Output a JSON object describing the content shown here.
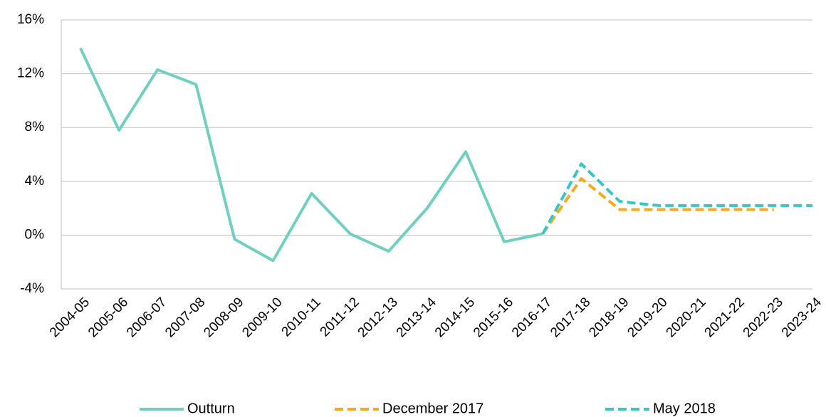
{
  "chart_data": {
    "type": "line",
    "categories": [
      "2004-05",
      "2005-06",
      "2006-07",
      "2007-08",
      "2008-09",
      "2009-10",
      "2010-11",
      "2011-12",
      "2012-13",
      "2013-14",
      "2014-15",
      "2015-16",
      "2016-17",
      "2017-18",
      "2018-19",
      "2019-20",
      "2020-21",
      "2021-22",
      "2022-23",
      "2023-24"
    ],
    "series": [
      {
        "name": "Outturn",
        "color": "#70d0c0",
        "dashed": false,
        "values": [
          13.9,
          7.8,
          12.3,
          11.2,
          -0.3,
          -1.9,
          3.1,
          0.1,
          -1.2,
          2.0,
          6.2,
          -0.5,
          0.1,
          null,
          null,
          null,
          null,
          null,
          null,
          null
        ]
      },
      {
        "name": "December 2017",
        "color": "#f7a81b",
        "dashed": true,
        "values": [
          null,
          null,
          null,
          null,
          null,
          null,
          null,
          null,
          null,
          null,
          null,
          null,
          0.1,
          4.2,
          1.9,
          1.9,
          1.9,
          1.9,
          1.9,
          null
        ]
      },
      {
        "name": "May 2018",
        "color": "#33c8c8",
        "dashed": true,
        "values": [
          null,
          null,
          null,
          null,
          null,
          null,
          null,
          null,
          null,
          null,
          null,
          null,
          0.1,
          5.3,
          2.5,
          2.2,
          2.2,
          2.2,
          2.2,
          2.2
        ]
      }
    ],
    "ylim": [
      -4,
      16
    ],
    "yticks": [
      {
        "value": -4,
        "label": "-4%"
      },
      {
        "value": 0,
        "label": "0%"
      },
      {
        "value": 4,
        "label": "4%"
      },
      {
        "value": 8,
        "label": "8%"
      },
      {
        "value": 12,
        "label": "12%"
      },
      {
        "value": 16,
        "label": "16%"
      }
    ],
    "grid": true,
    "legend": "bottom"
  }
}
